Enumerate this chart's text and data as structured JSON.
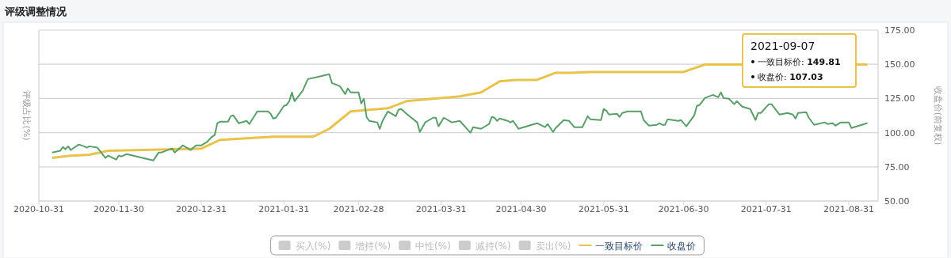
{
  "chart_data": {
    "type": "line",
    "title": "评级调整情况",
    "ylabel": "评级占比(%)",
    "y2label": "收盘价(前复权)",
    "xlim": [
      "2020-10-31",
      "2021-09-11"
    ],
    "xticks": [
      "2020-10-31",
      "2020-11-30",
      "2020-12-31",
      "2021-01-31",
      "2021-02-28",
      "2021-03-31",
      "2021-04-30",
      "2021-05-31",
      "2021-06-30",
      "2021-07-31",
      "2021-08-31"
    ],
    "y2lim": [
      50,
      175
    ],
    "y2ticks": [
      {
        "value": 50,
        "label": "50.00"
      },
      {
        "value": 75,
        "label": "75.00"
      },
      {
        "value": 100,
        "label": "100.00"
      },
      {
        "value": 125,
        "label": "125.00"
      },
      {
        "value": 150,
        "label": "150.00"
      },
      {
        "value": 175,
        "label": "175.00"
      }
    ],
    "grid": "y",
    "legend": "bottom",
    "annotations": [
      "2021-09-07",
      "一致目标价: 149.81",
      "收盘价: 107.03"
    ],
    "series": [
      {
        "name": "买入(%)",
        "type": "bar",
        "color": "#cccccc"
      },
      {
        "name": "增持(%)",
        "type": "bar",
        "color": "#cccccc"
      },
      {
        "name": "中性(%)",
        "type": "bar",
        "color": "#cccccc"
      },
      {
        "name": "减持(%)",
        "type": "bar",
        "color": "#cccccc"
      },
      {
        "name": "卖出(%)",
        "type": "bar",
        "color": "#cccccc"
      },
      {
        "name": "一致目标价",
        "axis": "y2",
        "color": "#e8c24a",
        "x": [
          "2020-11-05",
          "2020-11-12",
          "2020-11-19",
          "2020-11-26",
          "2020-12-31",
          "2021-01-07",
          "2021-01-27",
          "2021-02-06",
          "2021-02-11",
          "2021-02-17",
          "2021-02-25",
          "2021-03-11",
          "2021-03-18",
          "2021-04-07",
          "2021-04-15",
          "2021-04-22",
          "2021-04-28",
          "2021-05-06",
          "2021-05-13",
          "2021-05-19",
          "2021-05-26",
          "2021-06-30",
          "2021-07-08",
          "2021-09-07"
        ],
        "values": [
          81.5,
          83.2,
          83.8,
          86.7,
          88.4,
          94.7,
          97,
          97,
          97,
          102.8,
          115.5,
          117.8,
          123,
          126.5,
          129.4,
          137.5,
          138.6,
          138.6,
          143.8,
          143.8,
          144.4,
          144.4,
          149.81,
          149.81
        ]
      },
      {
        "name": "收盘价",
        "axis": "y2",
        "color": "#5a9e6a",
        "x": [
          "2020-11-05",
          "2020-11-08",
          "2020-11-09",
          "2020-11-10",
          "2020-11-11",
          "2020-11-12",
          "2020-11-15",
          "2020-11-17",
          "2020-11-18",
          "2020-11-19",
          "2020-11-22",
          "2020-11-25",
          "2020-11-26",
          "2020-11-29",
          "2020-11-30",
          "2020-12-01",
          "2020-12-03",
          "2020-12-13",
          "2020-12-15",
          "2020-12-16",
          "2020-12-20",
          "2020-12-21",
          "2020-12-24",
          "2020-12-27",
          "2020-12-29",
          "2020-12-31",
          "2021-01-02",
          "2021-01-04",
          "2021-01-05",
          "2021-01-06",
          "2021-01-07",
          "2021-01-10",
          "2021-01-11",
          "2021-01-12",
          "2021-01-14",
          "2021-01-17",
          "2021-01-18",
          "2021-01-21",
          "2021-01-25",
          "2021-01-26",
          "2021-01-27",
          "2021-01-28",
          "2021-01-31",
          "2021-02-01",
          "2021-02-02",
          "2021-02-03",
          "2021-02-04",
          "2021-02-07",
          "2021-02-09",
          "2021-02-12",
          "2021-02-17",
          "2021-02-18",
          "2021-02-21",
          "2021-02-23",
          "2021-02-24",
          "2021-02-25",
          "2021-02-28",
          "2021-03-01",
          "2021-03-02",
          "2021-03-03",
          "2021-03-04",
          "2021-03-07",
          "2021-03-08",
          "2021-03-09",
          "2021-03-11",
          "2021-03-14",
          "2021-03-15",
          "2021-03-16",
          "2021-03-18",
          "2021-03-22",
          "2021-03-23",
          "2021-03-25",
          "2021-03-28",
          "2021-03-29",
          "2021-03-30",
          "2021-04-01",
          "2021-04-04",
          "2021-04-07",
          "2021-04-11",
          "2021-04-12",
          "2021-04-15",
          "2021-04-18",
          "2021-04-19",
          "2021-04-20",
          "2021-04-21",
          "2021-04-22",
          "2021-04-25",
          "2021-04-26",
          "2021-04-27",
          "2021-04-29",
          "2021-05-04",
          "2021-05-06",
          "2021-05-09",
          "2021-05-10",
          "2021-05-12",
          "2021-05-13",
          "2021-05-16",
          "2021-05-18",
          "2021-05-20",
          "2021-05-23",
          "2021-05-25",
          "2021-05-26",
          "2021-05-30",
          "2021-05-31",
          "2021-06-01",
          "2021-06-02",
          "2021-06-05",
          "2021-06-06",
          "2021-06-07",
          "2021-06-09",
          "2021-06-14",
          "2021-06-15",
          "2021-06-17",
          "2021-06-20",
          "2021-06-21",
          "2021-06-22",
          "2021-06-23",
          "2021-06-24",
          "2021-06-28",
          "2021-06-29",
          "2021-07-01",
          "2021-07-04",
          "2021-07-05",
          "2021-07-06",
          "2021-07-08",
          "2021-07-11",
          "2021-07-13",
          "2021-07-14",
          "2021-07-15",
          "2021-07-17",
          "2021-07-19",
          "2021-07-20",
          "2021-07-22",
          "2021-07-25",
          "2021-07-27",
          "2021-07-28",
          "2021-07-29",
          "2021-08-01",
          "2021-08-02",
          "2021-08-05",
          "2021-08-08",
          "2021-08-10",
          "2021-08-11",
          "2021-08-12",
          "2021-08-15",
          "2021-08-16",
          "2021-08-18",
          "2021-08-22",
          "2021-08-23",
          "2021-08-25",
          "2021-08-26",
          "2021-08-28",
          "2021-08-31",
          "2021-09-01",
          "2021-09-07"
        ],
        "values": [
          85.5,
          86.7,
          89.5,
          87.8,
          90,
          87.3,
          91.3,
          90,
          89,
          90,
          89,
          81.5,
          83.2,
          80.3,
          83.2,
          82.6,
          84.3,
          79.7,
          85.5,
          85.5,
          88.4,
          85.5,
          90.7,
          87.3,
          90.7,
          90.7,
          93,
          97,
          98.2,
          106.9,
          108,
          108,
          112,
          112.6,
          106.9,
          108.6,
          106.3,
          115.5,
          115.5,
          113.8,
          110.3,
          110.9,
          119.6,
          120.2,
          123,
          129.4,
          123,
          130.5,
          139.2,
          140.4,
          142.7,
          136.3,
          134,
          128.2,
          132.3,
          129.4,
          129.4,
          121.3,
          124.8,
          111.5,
          108.6,
          107.5,
          102.8,
          108.6,
          115.5,
          112,
          116.7,
          117.3,
          113.8,
          107.5,
          100.5,
          107.5,
          110.9,
          110.9,
          104.6,
          110.9,
          107.5,
          108.6,
          100,
          104,
          102.8,
          106.3,
          111.5,
          110.9,
          108.6,
          110.3,
          108.6,
          107.5,
          108.6,
          102.8,
          105.7,
          106.9,
          104,
          106.3,
          100.5,
          103.4,
          109.2,
          108.6,
          104,
          104,
          112,
          109.8,
          109.2,
          117.3,
          116.1,
          113.2,
          113.8,
          111.5,
          114.4,
          115.5,
          115.5,
          109.2,
          105.1,
          105.7,
          106.9,
          105.7,
          105.7,
          109.8,
          108.6,
          109.2,
          104.6,
          112.6,
          119.6,
          120.2,
          125.3,
          127.6,
          125.9,
          129.4,
          125.3,
          124.8,
          120.8,
          123,
          119,
          117.3,
          109.2,
          114.4,
          114.4,
          120.8,
          120.8,
          113.2,
          114.4,
          113.2,
          110.3,
          114.4,
          115,
          110.9,
          105.7,
          107.5,
          106.3,
          106.9,
          105.1,
          107.5,
          107.5,
          103.4,
          107.03
        ]
      }
    ]
  }
}
